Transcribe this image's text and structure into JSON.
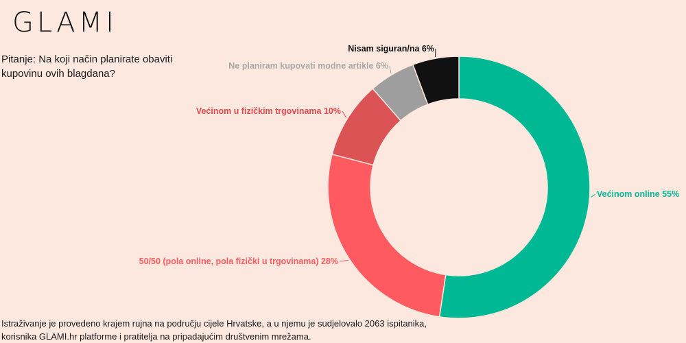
{
  "brand": {
    "logo_text": "GLAMI"
  },
  "question": "Pitanje: Na koji način planirate obaviti kupovinu ovih blagdana?",
  "footnote": {
    "line1": "Istraživanje je provedeno krajem rujna na području cijele Hrvatske, a u njemu je sudjelovalo 2063 ispitanika,",
    "line2": "korisnika GLAMI.hr platforme i pratitelja na pripadajućim društvenim mrežama."
  },
  "chart_data": {
    "type": "pie",
    "donut": true,
    "unit": "%",
    "categories": [
      "Većinom online",
      "50/50 (pola online, pola fizički u trgovinama)",
      "Većinom u fizičkim trgovinama",
      "Ne planiram kupovati modne artikle",
      "Nisam siguran/na"
    ],
    "values": [
      55,
      28,
      10,
      6,
      6
    ],
    "labels": [
      "Većinom online 55%",
      "50/50 (pola online, pola fizički u trgovinama) 28%",
      "Većinom u fizičkim trgovinama 10%",
      "Ne planiram kupovati modne artikle 6%",
      "Nisam siguran/na 6%"
    ],
    "colors": [
      "#00b894",
      "#ff5a5f",
      "#dc5356",
      "#9e9e9e",
      "#111111"
    ],
    "label_colors": [
      "#00b894",
      "#ff5a5f",
      "#e8474c",
      "#a8a8a8",
      "#111111"
    ]
  }
}
